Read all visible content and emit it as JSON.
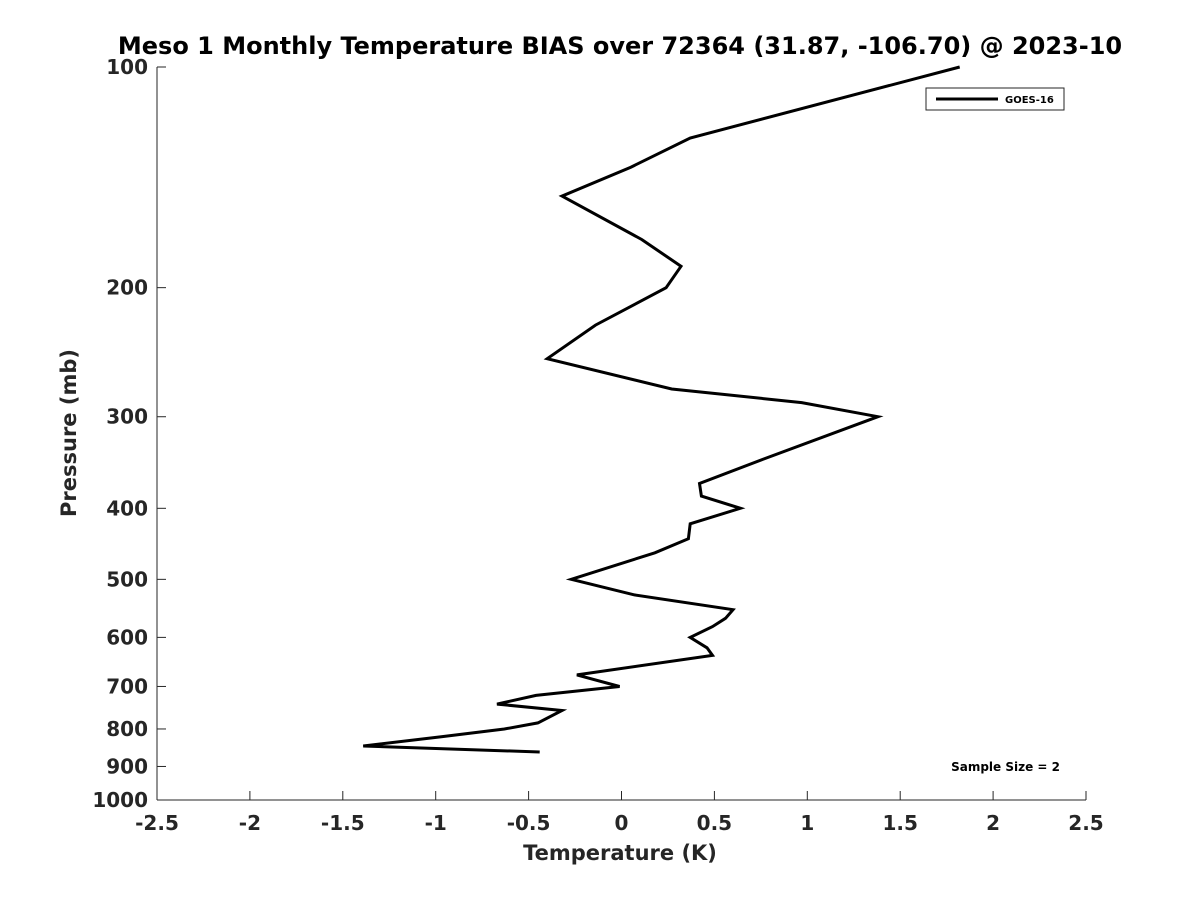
{
  "chart_data": {
    "type": "line",
    "title": "Meso 1 Monthly Temperature BIAS over 72364 (31.87, -106.70) @ 2023-10",
    "xlabel": "Temperature (K)",
    "ylabel": "Pressure (mb)",
    "xlim": [
      -2.5,
      2.5
    ],
    "ylim": [
      1000,
      100
    ],
    "y_scale": "log",
    "grid": false,
    "legend_position": "top-right",
    "x_ticks": [
      -2.5,
      -2,
      -1.5,
      -1,
      -0.5,
      0,
      0.5,
      1,
      1.5,
      2,
      2.5
    ],
    "x_tick_labels": [
      "-2.5",
      "-2",
      "-1.5",
      "-1",
      "-0.5",
      "0",
      "0.5",
      "1",
      "1.5",
      "2",
      "2.5"
    ],
    "y_ticks": [
      100,
      200,
      300,
      400,
      500,
      600,
      700,
      800,
      900,
      1000
    ],
    "y_tick_labels": [
      "100",
      "200",
      "300",
      "400",
      "500",
      "600",
      "700",
      "800",
      "900",
      "1000"
    ],
    "series": [
      {
        "name": "GOES-16",
        "color": "#000000",
        "points": [
          [
            1.82,
            100
          ],
          [
            0.37,
            125
          ],
          [
            0.05,
            137
          ],
          [
            -0.32,
            150
          ],
          [
            0.11,
            172
          ],
          [
            0.32,
            187
          ],
          [
            0.24,
            200
          ],
          [
            -0.14,
            225
          ],
          [
            -0.4,
            250
          ],
          [
            0.27,
            275
          ],
          [
            0.97,
            287
          ],
          [
            1.38,
            300
          ],
          [
            0.76,
            343
          ],
          [
            0.42,
            370
          ],
          [
            0.43,
            385
          ],
          [
            0.64,
            400
          ],
          [
            0.37,
            420
          ],
          [
            0.36,
            440
          ],
          [
            0.18,
            460
          ],
          [
            -0.27,
            500
          ],
          [
            0.07,
            525
          ],
          [
            0.6,
            550
          ],
          [
            0.56,
            565
          ],
          [
            0.49,
            580
          ],
          [
            0.37,
            600
          ],
          [
            0.46,
            620
          ],
          [
            0.49,
            635
          ],
          [
            -0.24,
            675
          ],
          [
            -0.01,
            700
          ],
          [
            -0.46,
            720
          ],
          [
            -0.67,
            740
          ],
          [
            -0.32,
            755
          ],
          [
            -0.45,
            785
          ],
          [
            -0.63,
            800
          ],
          [
            -0.97,
            820
          ],
          [
            -1.39,
            844
          ],
          [
            -0.44,
            860
          ]
        ]
      }
    ],
    "annotation": "Sample Size = 2"
  }
}
